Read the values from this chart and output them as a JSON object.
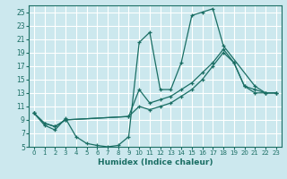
{
  "xlabel": "Humidex (Indice chaleur)",
  "bg_color": "#cce8ee",
  "grid_color": "#ffffff",
  "line_color": "#1a6e64",
  "xlim": [
    -0.5,
    23.5
  ],
  "ylim": [
    5,
    26
  ],
  "yticks": [
    5,
    7,
    9,
    11,
    13,
    15,
    17,
    19,
    21,
    23,
    25
  ],
  "xticks": [
    0,
    1,
    2,
    3,
    4,
    5,
    6,
    7,
    8,
    9,
    10,
    11,
    12,
    13,
    14,
    15,
    16,
    17,
    18,
    19,
    20,
    21,
    22,
    23
  ],
  "series": {
    "line1_x": [
      0,
      1,
      2,
      3,
      4,
      5,
      6,
      7,
      8,
      9,
      10,
      11,
      12,
      13,
      14,
      15,
      16,
      17,
      18,
      21,
      22,
      23
    ],
    "line1_y": [
      10.0,
      8.2,
      7.5,
      9.2,
      6.5,
      5.5,
      5.2,
      5.0,
      5.2,
      6.5,
      20.5,
      22.0,
      13.5,
      13.5,
      17.5,
      24.5,
      25.0,
      25.5,
      20.0,
      14.0,
      13.0,
      13.0
    ],
    "line2_x": [
      0,
      1,
      2,
      3,
      9,
      10,
      11,
      12,
      13,
      14,
      15,
      16,
      17,
      18,
      19,
      20,
      21,
      22,
      23
    ],
    "line2_y": [
      10.0,
      8.5,
      8.0,
      9.0,
      9.5,
      13.5,
      11.5,
      12.0,
      12.5,
      13.5,
      14.5,
      16.0,
      17.5,
      19.5,
      17.5,
      14.0,
      13.5,
      13.0,
      13.0
    ],
    "line3_x": [
      0,
      1,
      2,
      3,
      9,
      10,
      11,
      12,
      13,
      14,
      15,
      16,
      17,
      18,
      19,
      20,
      21,
      22,
      23
    ],
    "line3_y": [
      10.0,
      8.5,
      8.0,
      9.0,
      9.5,
      11.0,
      10.5,
      11.0,
      11.5,
      12.5,
      13.5,
      15.0,
      17.0,
      19.0,
      17.5,
      14.0,
      13.0,
      13.0,
      13.0
    ]
  }
}
